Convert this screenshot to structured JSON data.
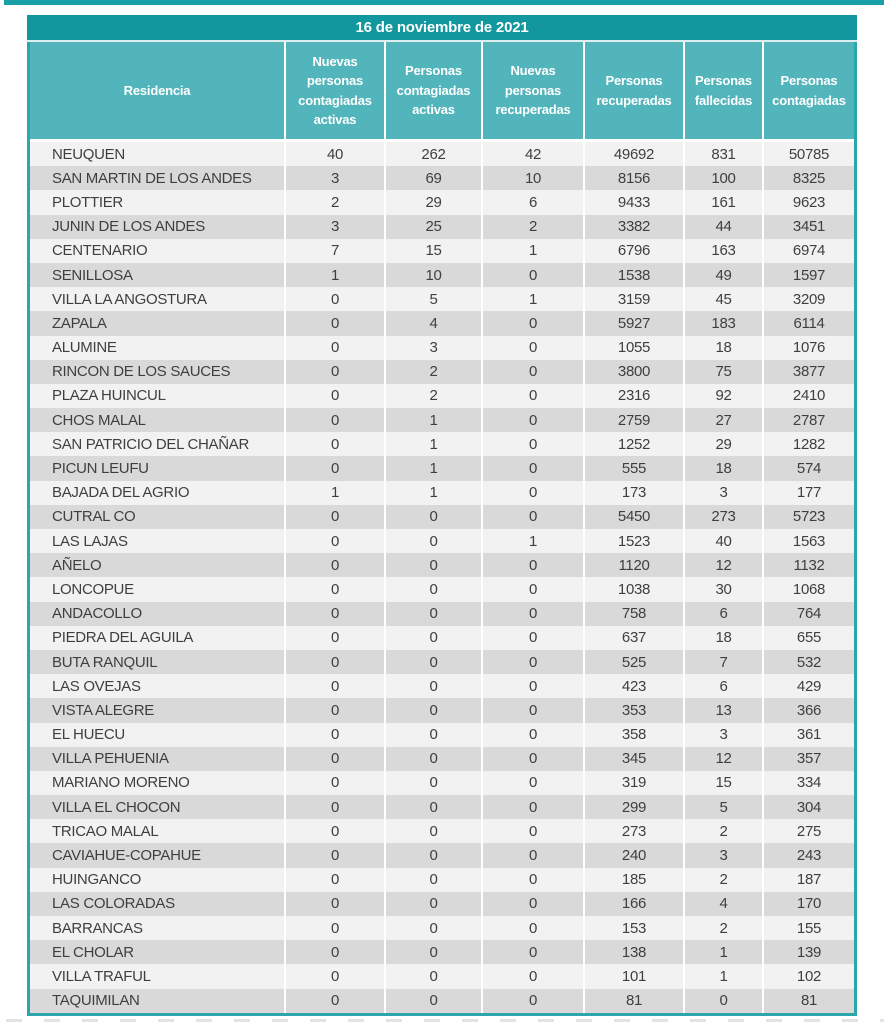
{
  "title": "16 de noviembre de 2021",
  "colors": {
    "title_bar": "#11979d",
    "header_bg": "#52b5bb",
    "border": "#2ba6ab",
    "top_strip": "#18a0a6",
    "row_odd": "#f2f2f2",
    "row_even": "#d9d9d9",
    "row_text": "#3f3f3f"
  },
  "chart_data": {
    "type": "table",
    "title": "16 de noviembre de 2021",
    "columns": [
      "Residencia",
      "Nuevas personas contagiadas activas",
      "Personas contagiadas activas",
      "Nuevas personas recuperadas",
      "Personas recuperadas",
      "Personas fallecidas",
      "Personas contagiadas"
    ],
    "rows": [
      [
        "NEUQUEN",
        40,
        262,
        42,
        49692,
        831,
        50785
      ],
      [
        "SAN MARTIN DE LOS ANDES",
        3,
        69,
        10,
        8156,
        100,
        8325
      ],
      [
        "PLOTTIER",
        2,
        29,
        6,
        9433,
        161,
        9623
      ],
      [
        "JUNIN DE LOS ANDES",
        3,
        25,
        2,
        3382,
        44,
        3451
      ],
      [
        "CENTENARIO",
        7,
        15,
        1,
        6796,
        163,
        6974
      ],
      [
        "SENILLOSA",
        1,
        10,
        0,
        1538,
        49,
        1597
      ],
      [
        "VILLA LA ANGOSTURA",
        0,
        5,
        1,
        3159,
        45,
        3209
      ],
      [
        "ZAPALA",
        0,
        4,
        0,
        5927,
        183,
        6114
      ],
      [
        "ALUMINE",
        0,
        3,
        0,
        1055,
        18,
        1076
      ],
      [
        "RINCON DE LOS SAUCES",
        0,
        2,
        0,
        3800,
        75,
        3877
      ],
      [
        "PLAZA HUINCUL",
        0,
        2,
        0,
        2316,
        92,
        2410
      ],
      [
        "CHOS MALAL",
        0,
        1,
        0,
        2759,
        27,
        2787
      ],
      [
        "SAN PATRICIO DEL CHAÑAR",
        0,
        1,
        0,
        1252,
        29,
        1282
      ],
      [
        "PICUN LEUFU",
        0,
        1,
        0,
        555,
        18,
        574
      ],
      [
        "BAJADA DEL AGRIO",
        1,
        1,
        0,
        173,
        3,
        177
      ],
      [
        "CUTRAL CO",
        0,
        0,
        0,
        5450,
        273,
        5723
      ],
      [
        "LAS LAJAS",
        0,
        0,
        1,
        1523,
        40,
        1563
      ],
      [
        "AÑELO",
        0,
        0,
        0,
        1120,
        12,
        1132
      ],
      [
        "LONCOPUE",
        0,
        0,
        0,
        1038,
        30,
        1068
      ],
      [
        "ANDACOLLO",
        0,
        0,
        0,
        758,
        6,
        764
      ],
      [
        "PIEDRA DEL AGUILA",
        0,
        0,
        0,
        637,
        18,
        655
      ],
      [
        "BUTA RANQUIL",
        0,
        0,
        0,
        525,
        7,
        532
      ],
      [
        "LAS OVEJAS",
        0,
        0,
        0,
        423,
        6,
        429
      ],
      [
        "VISTA ALEGRE",
        0,
        0,
        0,
        353,
        13,
        366
      ],
      [
        "EL HUECU",
        0,
        0,
        0,
        358,
        3,
        361
      ],
      [
        "VILLA PEHUENIA",
        0,
        0,
        0,
        345,
        12,
        357
      ],
      [
        "MARIANO MORENO",
        0,
        0,
        0,
        319,
        15,
        334
      ],
      [
        "VILLA EL CHOCON",
        0,
        0,
        0,
        299,
        5,
        304
      ],
      [
        "TRICAO MALAL",
        0,
        0,
        0,
        273,
        2,
        275
      ],
      [
        "CAVIAHUE-COPAHUE",
        0,
        0,
        0,
        240,
        3,
        243
      ],
      [
        "HUINGANCO",
        0,
        0,
        0,
        185,
        2,
        187
      ],
      [
        "LAS COLORADAS",
        0,
        0,
        0,
        166,
        4,
        170
      ],
      [
        "BARRANCAS",
        0,
        0,
        0,
        153,
        2,
        155
      ],
      [
        "EL CHOLAR",
        0,
        0,
        0,
        138,
        1,
        139
      ],
      [
        "VILLA TRAFUL",
        0,
        0,
        0,
        101,
        1,
        102
      ],
      [
        "TAQUIMILAN",
        0,
        0,
        0,
        81,
        0,
        81
      ]
    ]
  }
}
